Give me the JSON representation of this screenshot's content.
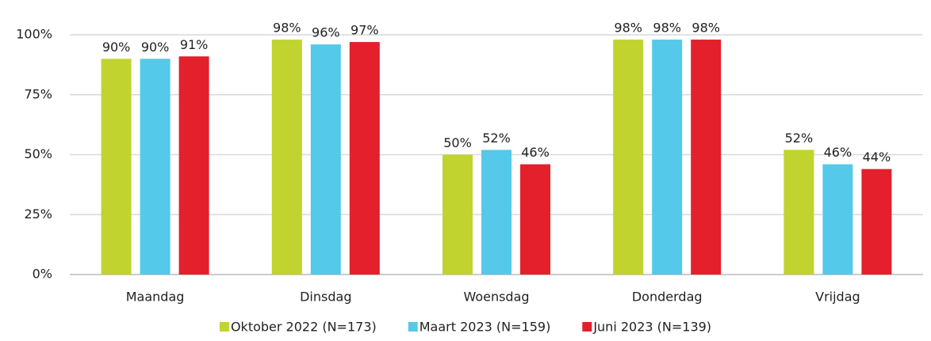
{
  "chart_data": {
    "type": "bar",
    "categories": [
      "Maandag",
      "Dinsdag",
      "Woensdag",
      "Donderdag",
      "Vrijdag"
    ],
    "series": [
      {
        "name": "Oktober 2022 (N=173)",
        "color": "#c1d32f",
        "values": [
          90,
          98,
          50,
          98,
          52
        ],
        "value_labels": [
          "90%",
          "98%",
          "50%",
          "98%",
          "52%"
        ]
      },
      {
        "name": "Maart 2023 (N=159)",
        "color": "#55c9e9",
        "values": [
          90,
          96,
          52,
          98,
          46
        ],
        "value_labels": [
          "90%",
          "96%",
          "52%",
          "98%",
          "46%"
        ]
      },
      {
        "name": "Juni 2023 (N=139)",
        "color": "#e3202b",
        "values": [
          91,
          97,
          46,
          98,
          44
        ],
        "value_labels": [
          "91%",
          "97%",
          "46%",
          "98%",
          "44%"
        ]
      }
    ],
    "ylim": [
      0,
      100
    ],
    "yticks": [
      {
        "value": 0,
        "label": "0%"
      },
      {
        "value": 25,
        "label": "25%"
      },
      {
        "value": 50,
        "label": "50%"
      },
      {
        "value": 75,
        "label": "75%"
      },
      {
        "value": 100,
        "label": "100%"
      }
    ],
    "grid": true,
    "legend": "bottom"
  }
}
